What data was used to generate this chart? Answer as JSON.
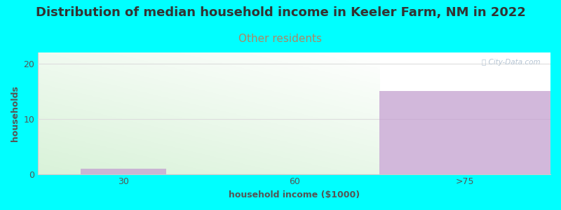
{
  "title": "Distribution of median household income in Keeler Farm, NM in 2022",
  "subtitle": "Other residents",
  "xlabel": "household income ($1000)",
  "ylabel": "households",
  "background_color": "#00FFFF",
  "plot_bg_color": "#FFFFFF",
  "bar_categories": [
    "30",
    "60",
    ">75"
  ],
  "bar_values": [
    1,
    0,
    15
  ],
  "bar_color": "#C4A0D0",
  "green_fill_color_bottom": "#C8EEC8",
  "green_fill_color_top": "#F0FFF0",
  "ylim": [
    0,
    22
  ],
  "yticks": [
    0,
    10,
    20
  ],
  "title_fontsize": 13,
  "subtitle_fontsize": 11,
  "subtitle_color": "#AA8866",
  "axis_label_fontsize": 9,
  "tick_fontsize": 9,
  "watermark_text": "ⓘ City-Data.com",
  "watermark_color": "#AABBCC",
  "grid_color": "#DDDDDD",
  "spine_color": "#CCCCCC",
  "text_color": "#333333",
  "label_color": "#555555"
}
